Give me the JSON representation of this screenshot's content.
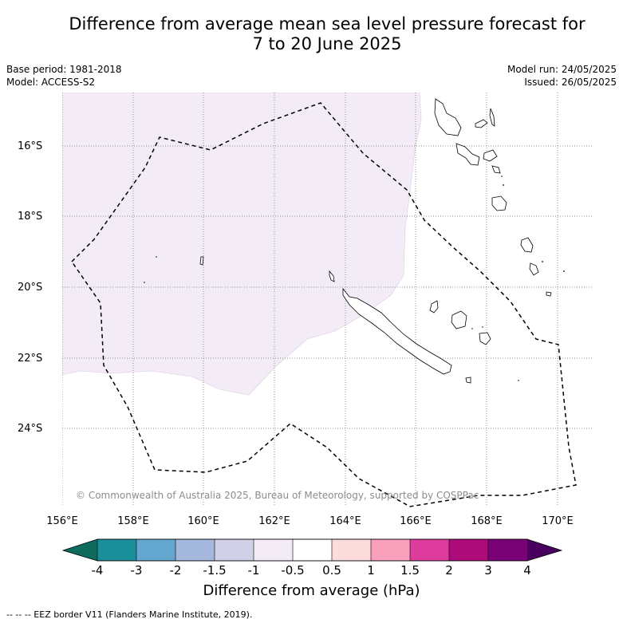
{
  "title_line1": "Difference from average mean sea level pressure forecast for",
  "title_line2": "7 to 20 June 2025",
  "base_period": "Base period: 1981-2018",
  "model": "Model: ACCESS-S2",
  "model_run": "Model run: 24/05/2025",
  "issued": "Issued: 26/05/2025",
  "copyright": "© Commonwealth of Australia 2025, Bureau of Meteorology, supported by COSPPac",
  "lat_labels": [
    "16°S",
    "18°S",
    "20°S",
    "22°S",
    "24°S"
  ],
  "lon_labels": [
    "156°E",
    "158°E",
    "160°E",
    "162°E",
    "164°E",
    "166°E",
    "168°E",
    "170°E"
  ],
  "colorbar": {
    "ticks": [
      "-4",
      "-3",
      "-2",
      "-1.5",
      "-1",
      "-0.5",
      "0.5",
      "1",
      "1.5",
      "2",
      "3",
      "4"
    ],
    "colors": [
      "#0e6b5e",
      "#1b8f99",
      "#64a8d0",
      "#a4b8dd",
      "#d0d0e8",
      "#f3ecf6",
      "#ffffff",
      "#fddcdc",
      "#f9a0bd",
      "#de3c9d",
      "#ad0b7a",
      "#7a0277",
      "#4a0060"
    ],
    "title": "Difference from average (hPa)"
  },
  "footnote": "-- -- -- EEZ border V11 (Flanders Marine Institute, 2019).",
  "map": {
    "lat_range": [
      "14.5°S",
      "26.2°S"
    ],
    "lon_range": [
      "156°E",
      "171°E"
    ],
    "anomaly_band": "-1 to -0.5",
    "grid": true
  }
}
